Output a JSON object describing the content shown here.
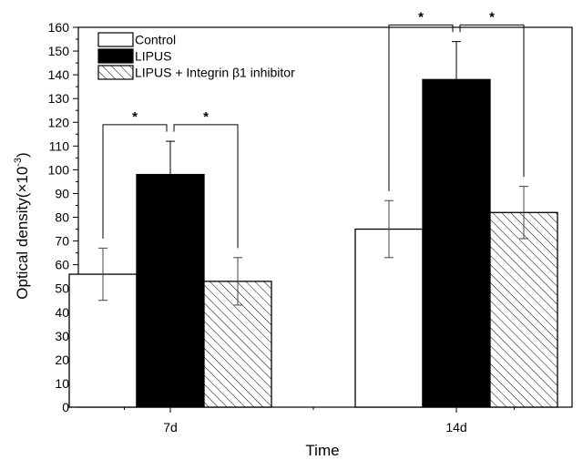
{
  "chart_data": {
    "type": "bar",
    "categories": [
      "7d",
      "14d"
    ],
    "xlabel": "Time",
    "ylabel": "Optical density(×10",
    "ylabel_exponent": "-3",
    "ylabel_close": ")",
    "ylim": [
      0,
      160
    ],
    "yticks": [
      0,
      10,
      20,
      30,
      40,
      50,
      60,
      70,
      80,
      90,
      100,
      110,
      120,
      130,
      140,
      150,
      160
    ],
    "legend_position": "top-left",
    "series": [
      {
        "name": "Control",
        "values": [
          56,
          75
        ],
        "errors": [
          11,
          12
        ],
        "fill": "#ffffff",
        "pattern": "none"
      },
      {
        "name": "LIPUS",
        "values": [
          98,
          138
        ],
        "errors": [
          14,
          16
        ],
        "fill": "#000000",
        "pattern": "none"
      },
      {
        "name": "LIPUS + Integrin β1 inhibitor",
        "values": [
          53,
          82
        ],
        "errors": [
          10,
          11
        ],
        "fill": "#ffffff",
        "pattern": "diagonal-hatch"
      }
    ],
    "significance": [
      {
        "category": 0,
        "from_series": 0,
        "to_series": 1,
        "label": "*"
      },
      {
        "category": 0,
        "from_series": 1,
        "to_series": 2,
        "label": "*"
      },
      {
        "category": 1,
        "from_series": 0,
        "to_series": 1,
        "label": "*"
      },
      {
        "category": 1,
        "from_series": 1,
        "to_series": 2,
        "label": "*"
      }
    ]
  }
}
